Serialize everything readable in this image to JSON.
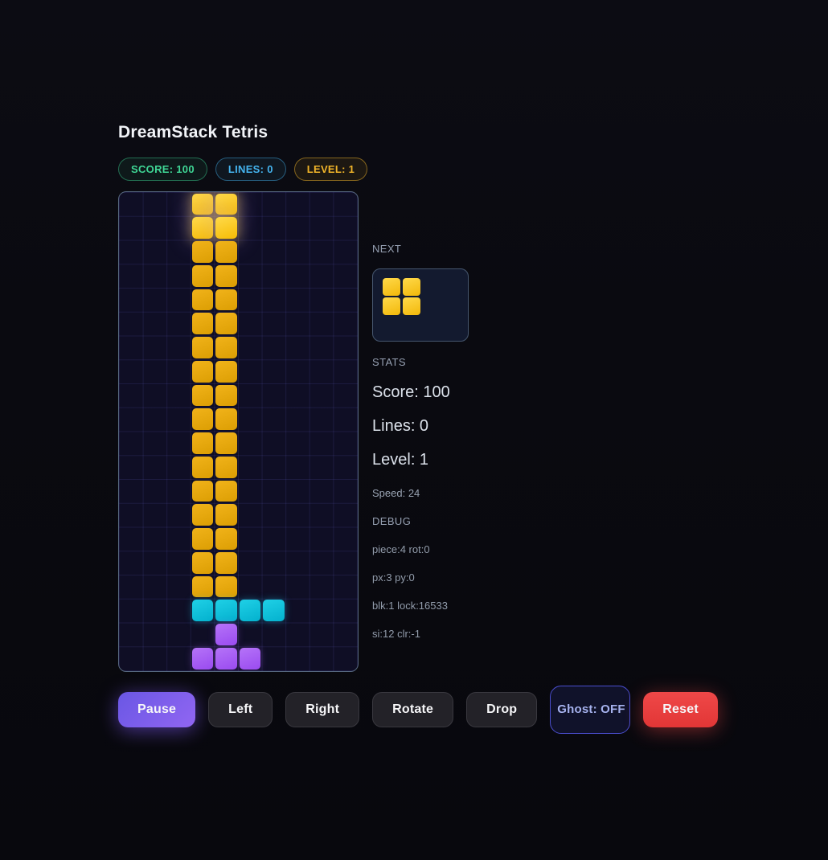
{
  "title": "DreamStack Tetris",
  "badges": [
    {
      "name": "score-badge",
      "label": "SCORE: 100",
      "color": "#3fd695",
      "border": "rgba(63,214,149,0.45)",
      "bg": "rgba(63,214,149,0.07)"
    },
    {
      "name": "lines-badge",
      "label": "LINES: 0",
      "color": "#45b4ef",
      "border": "rgba(69,180,239,0.45)",
      "bg": "rgba(69,180,239,0.07)"
    },
    {
      "name": "level-badge",
      "label": "LEVEL: 1",
      "color": "#f0b429",
      "border": "rgba(240,180,41,0.50)",
      "bg": "rgba(240,180,41,0.08)"
    }
  ],
  "board": {
    "cols": 10,
    "rows_count": 20,
    "rows": [
      "...AA.....",
      "...AA.....",
      "...YY.....",
      "...YY.....",
      "...YY.....",
      "...YY.....",
      "...YY.....",
      "...YY.....",
      "...YY.....",
      "...YY.....",
      "...YY.....",
      "...YY.....",
      "...YY.....",
      "...YY.....",
      "...YY.....",
      "...YY.....",
      "...YY.....",
      "...CCCC...",
      "....P.....",
      "...PPP...."
    ],
    "classes": {
      "A": "active-yellow",
      "Y": "locked-yellow",
      "C": "cyan",
      "P": "purple"
    },
    "colors": {
      "active_yellow": "#f9c80e",
      "locked_yellow": "#e5a70d",
      "cyan": "#0bbedd",
      "purple": "#a55cf2",
      "grid_line": "#28264e",
      "board_bg": "#0f0e25",
      "board_border": "#56677f"
    }
  },
  "next": {
    "label": "NEXT",
    "piece_name": "O-piece",
    "piece": [
      [
        1,
        1
      ],
      [
        1,
        1
      ]
    ]
  },
  "stats": {
    "label": "STATS",
    "score": "Score: 100",
    "lines": "Lines: 0",
    "level": "Level: 1",
    "speed": "Speed: 24"
  },
  "debug": {
    "label": "DEBUG",
    "lines": [
      "piece:4 rot:0",
      "px:3 py:0",
      "blk:1 lock:16533",
      "si:12 clr:-1"
    ]
  },
  "controls": [
    {
      "name": "pause-button",
      "label": "Pause",
      "variant": "primary"
    },
    {
      "name": "left-button",
      "label": "Left",
      "variant": "default"
    },
    {
      "name": "right-button",
      "label": "Right",
      "variant": "default"
    },
    {
      "name": "rotate-button",
      "label": "Rotate",
      "variant": "default"
    },
    {
      "name": "drop-button",
      "label": "Drop",
      "variant": "default"
    },
    {
      "name": "ghost-button",
      "label": "Ghost: OFF",
      "variant": "ghost"
    },
    {
      "name": "reset-button",
      "label": "Reset",
      "variant": "danger"
    }
  ],
  "accent_colors": {
    "pause_purple": "#7c5cf0",
    "reset_red": "#e94040",
    "ghost_border": "#4a4ecf"
  }
}
